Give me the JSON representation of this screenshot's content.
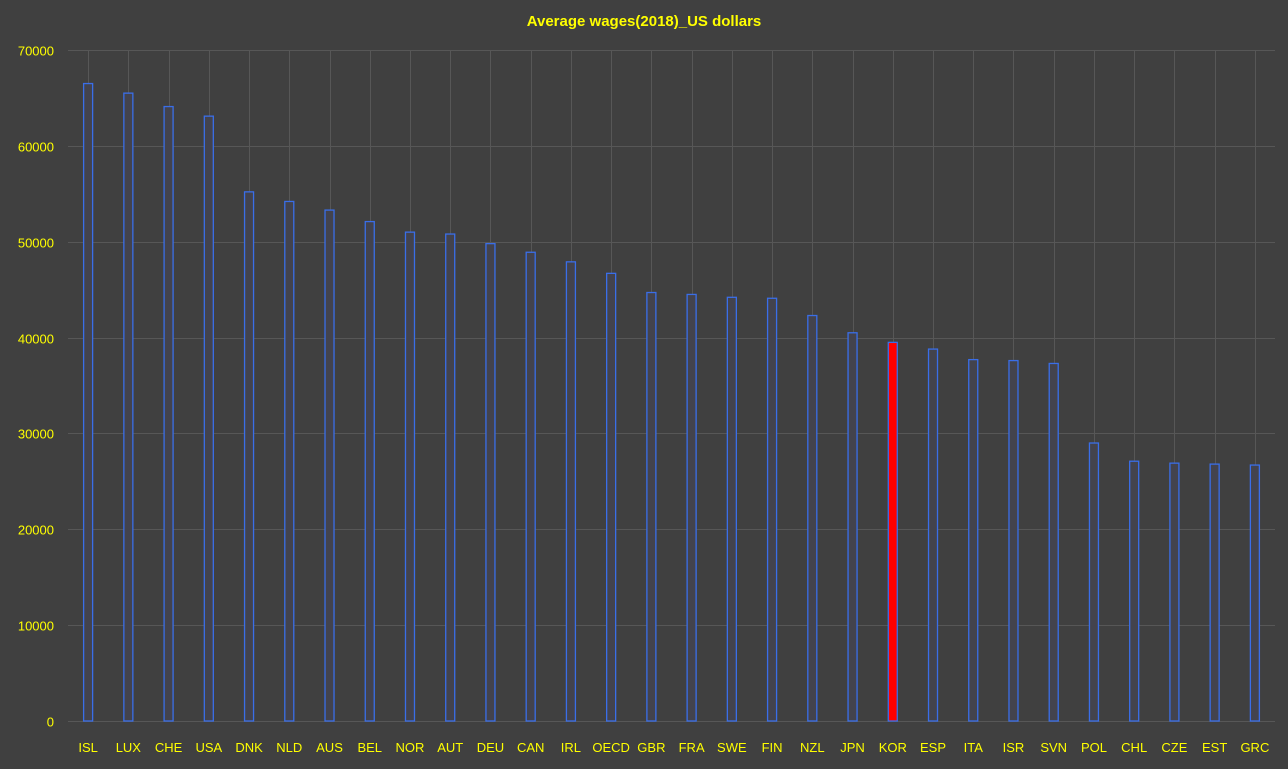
{
  "chart_data": {
    "type": "bar",
    "title": "Average wages(2018)_US dollars",
    "categories": [
      "ISL",
      "LUX",
      "CHE",
      "USA",
      "DNK",
      "NLD",
      "AUS",
      "BEL",
      "NOR",
      "AUT",
      "DEU",
      "CAN",
      "IRL",
      "OECD",
      "GBR",
      "FRA",
      "SWE",
      "FIN",
      "NZL",
      "JPN",
      "KOR",
      "ESP",
      "ITA",
      "ISR",
      "SVN",
      "POL",
      "CHL",
      "CZE",
      "EST",
      "GRC"
    ],
    "values": [
      66500,
      65500,
      64100,
      63100,
      55200,
      54200,
      53300,
      52100,
      51000,
      50800,
      49800,
      48900,
      47900,
      46700,
      44700,
      44500,
      44200,
      44100,
      42300,
      40500,
      39500,
      38800,
      37700,
      37600,
      37300,
      29000,
      27100,
      26900,
      26800,
      26700
    ],
    "highlight": "KOR",
    "ylim": [
      0,
      70000
    ],
    "yticks": [
      0,
      10000,
      20000,
      30000,
      40000,
      50000,
      60000,
      70000
    ],
    "xlabel": "",
    "ylabel": "",
    "grid": true,
    "colors": {
      "background": "#404040",
      "text": "#ffff00",
      "grid": "#575757",
      "bar_fill": "#43434d",
      "bar_stroke": "#3a6ee8",
      "highlight_fill": "#ff0000"
    }
  }
}
